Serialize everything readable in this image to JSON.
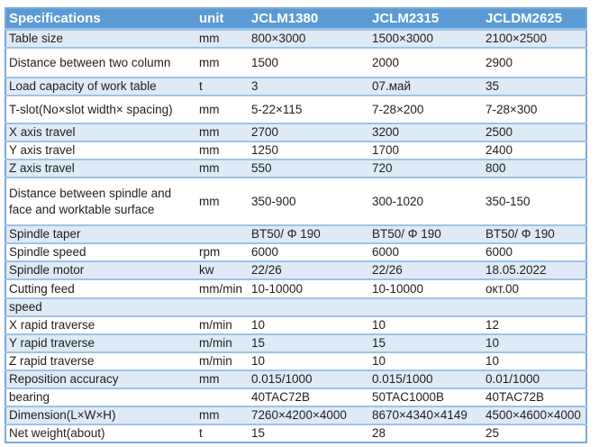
{
  "table": {
    "columns": [
      "Specifications",
      "unit",
      "JCLM1380",
      "JCLM2315",
      "JCLDM2625"
    ],
    "rows": [
      {
        "label": "Table size",
        "unit": "mm",
        "values": [
          "800×3000",
          "1500×3000",
          "2100×2500"
        ]
      },
      {
        "label": "Distance between two column",
        "unit": "mm",
        "values": [
          "1500",
          "2000",
          "2900"
        ]
      },
      {
        "label": "Load capacity of work table",
        "unit": "t",
        "values": [
          "3",
          "07.май",
          "35"
        ]
      },
      {
        "label": "T-slot(No×slot width× spacing)",
        "unit": "mm",
        "values": [
          "5-22×115",
          "7-28×200",
          "7-28×300"
        ]
      },
      {
        "label": "X axis travel",
        "unit": "mm",
        "values": [
          "2700",
          "3200",
          "2500"
        ]
      },
      {
        "label": "Y axis travel",
        "unit": "mm",
        "values": [
          "1250",
          "1700",
          "2400"
        ]
      },
      {
        "label": "Z axis travel",
        "unit": "mm",
        "values": [
          "550",
          "720",
          "800"
        ]
      },
      {
        "label": "Distance between spindle and face and worktable surface",
        "unit": "mm",
        "values": [
          "350-900",
          "300-1020",
          "350-150"
        ]
      },
      {
        "label": "Spindle taper",
        "unit": "",
        "values": [
          "BT50/ Φ 190",
          "BT50/ Φ 190",
          "BT50/ Φ 190"
        ]
      },
      {
        "label": "Spindle speed",
        "unit": "rpm",
        "values": [
          "6000",
          "6000",
          "6000"
        ]
      },
      {
        "label": "Spindle motor",
        "unit": "kw",
        "values": [
          "22/26",
          "22/26",
          "18.05.2022"
        ]
      },
      {
        "label": "Cutting feed",
        "unit": "mm/min",
        "values": [
          "10-10000",
          "10-10000",
          "окт.00"
        ]
      },
      {
        "label": "speed",
        "unit": "",
        "values": [
          "",
          "",
          ""
        ]
      },
      {
        "label": "X rapid traverse",
        "unit": "m/min",
        "values": [
          "10",
          "10",
          "12"
        ]
      },
      {
        "label": "Y rapid traverse",
        "unit": "m/min",
        "values": [
          "15",
          "15",
          "10"
        ]
      },
      {
        "label": "Z rapid traverse",
        "unit": "m/min",
        "values": [
          "10",
          "10",
          "10"
        ]
      },
      {
        "label": "Reposition accuracy",
        "unit": "mm",
        "values": [
          "0.015/1000",
          "0.015/1000",
          "0.01/1000"
        ]
      },
      {
        "label": "bearing",
        "unit": "",
        "values": [
          "40TAC72B",
          "50TAC1000B",
          "40TAC72B"
        ]
      },
      {
        "label": "Dimension(L×W×H)",
        "unit": "mm",
        "values": [
          "7260×4200×4000",
          "8670×4340×4149",
          "4500×4600×4000"
        ]
      },
      {
        "label": "Net weight(about)",
        "unit": "t",
        "values": [
          "15",
          "28",
          "25"
        ]
      }
    ]
  },
  "colors": {
    "header_bg": "#5b9bd5",
    "band_bg": "#deeaf6",
    "row_line": "#9dc3e6",
    "outer_border": "#7fa9d6",
    "text": "#1f1f1f",
    "header_text": "#ffffff"
  }
}
